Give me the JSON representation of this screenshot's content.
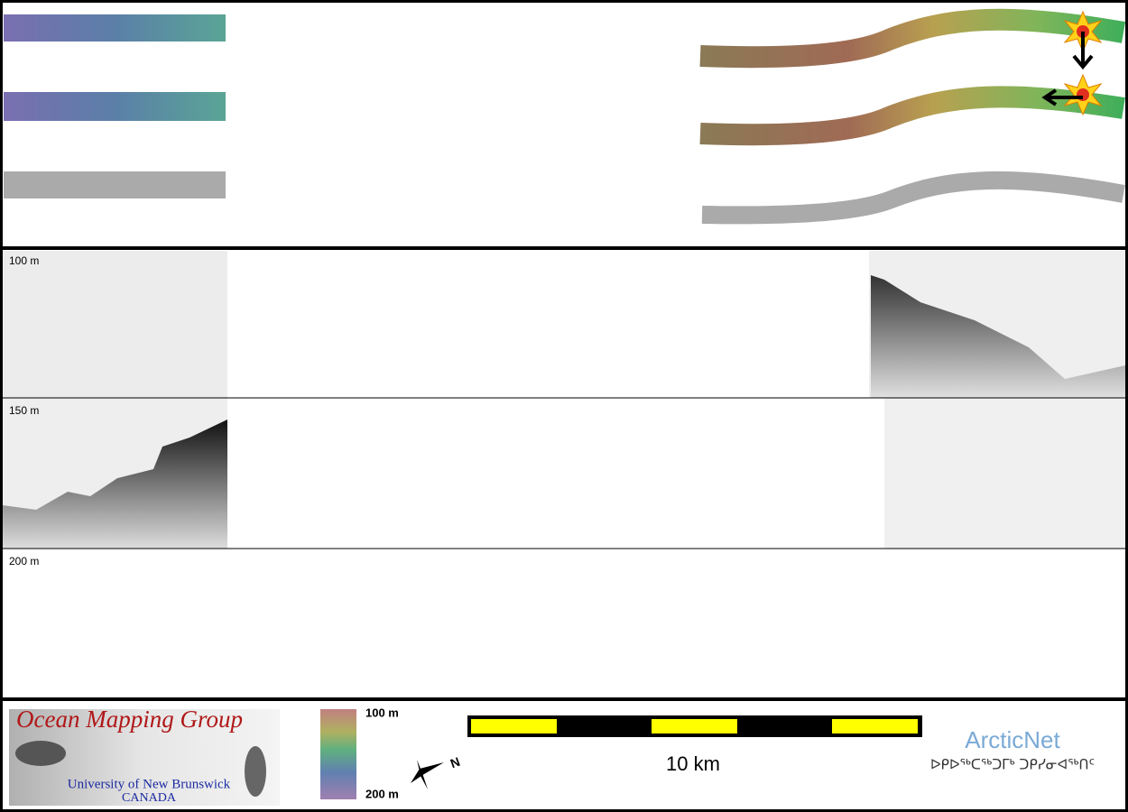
{
  "profile": {
    "depth_labels": [
      "100 m",
      "150 m",
      "200 m"
    ]
  },
  "footer": {
    "logo": {
      "title": "Ocean Mapping Group",
      "university": "University of New Brunswick",
      "country": "CANADA"
    },
    "colorbar": {
      "top_label": "100 m",
      "bottom_label": "200 m"
    },
    "compass": "N",
    "scale_bar": "10 km",
    "partner": {
      "name": "ArcticNet",
      "syllabics": "ᐅᑭᐅᖅᑕᖅᑐᒥᒃ ᑐᑭᓯᓂᐊᖅᑎᑦ"
    }
  }
}
